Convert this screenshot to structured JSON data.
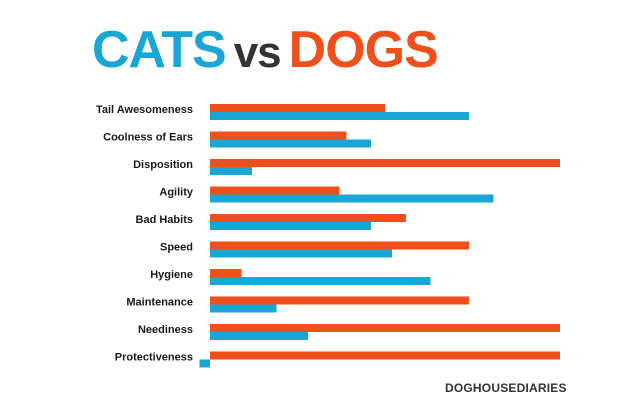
{
  "title": {
    "cats": "CATS",
    "vs": "vs",
    "dogs": "DOGS"
  },
  "credit": "DOGHOUSEDIARIES",
  "colors": {
    "cats": "#1aa6d4",
    "dogs": "#f04e1a",
    "vs": "#333333"
  },
  "chart_data": {
    "type": "bar",
    "orientation": "horizontal",
    "categories": [
      "Tail Awesomeness",
      "Coolness of Ears",
      "Disposition",
      "Agility",
      "Bad Habits",
      "Speed",
      "Hygiene",
      "Maintenance",
      "Neediness",
      "Protectiveness"
    ],
    "series": [
      {
        "name": "DOGS",
        "color": "#f04e1a",
        "values": [
          50,
          39,
          100,
          37,
          56,
          74,
          9,
          74,
          100,
          100
        ]
      },
      {
        "name": "CATS",
        "color": "#1aa6d4",
        "values": [
          74,
          46,
          12,
          81,
          46,
          52,
          63,
          19,
          28,
          -3
        ]
      }
    ],
    "xlim": [
      -3,
      100
    ],
    "grid": false,
    "legend": "none"
  }
}
